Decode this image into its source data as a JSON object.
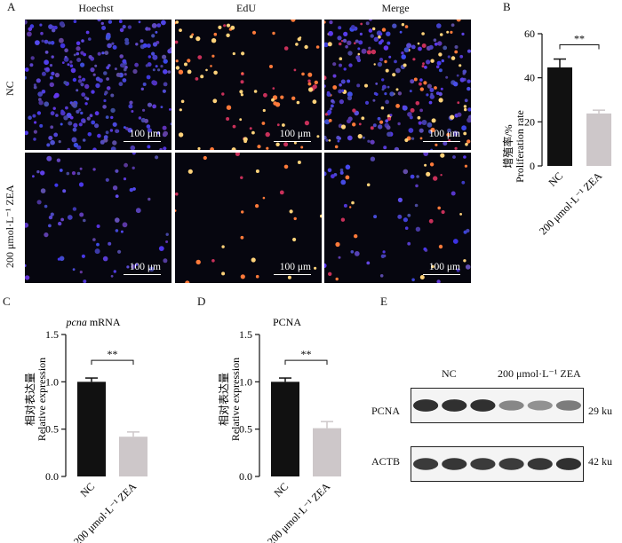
{
  "panel_letters": {
    "a": "A",
    "b": "B",
    "c": "C",
    "d": "D",
    "e": "E"
  },
  "panel_a": {
    "columns": [
      "Hoechst",
      "EdU",
      "Merge"
    ],
    "rows": [
      "NC",
      "200 μmol·L⁻¹ ZEA"
    ],
    "scale_bar": "100 μm"
  },
  "panel_b_extra": {
    "ylabel_cn": "增殖率/%",
    "ylabel_en": "Proliferation rate"
  },
  "panel_c_extra": {
    "title_italic": "pcna",
    "title_rest": " mRNA",
    "ylabel_cn": "相对表达量",
    "ylabel_en": "Relative expression"
  },
  "panel_d_extra": {
    "ylabel_cn": "相对表达量",
    "ylabel_en": "Relative expression"
  },
  "panel_e": {
    "groups": [
      "NC",
      "200 μmol·L⁻¹ ZEA"
    ],
    "proteins": [
      "PCNA",
      "ACTB"
    ],
    "sizes": [
      "29 ku",
      "42 ku"
    ],
    "pcna_intensity": [
      0.95,
      0.95,
      0.95,
      0.55,
      0.5,
      0.6
    ],
    "actb_intensity": [
      0.9,
      0.92,
      0.9,
      0.9,
      0.92,
      0.95
    ]
  },
  "chart_data": [
    {
      "type": "bar",
      "categories": [
        "NC",
        "200 μmol·L⁻¹ ZEA"
      ],
      "values": [
        44.7,
        23.8
      ],
      "errors": [
        3.8,
        1.5
      ],
      "ylim": [
        0,
        60
      ],
      "yticks": [
        0,
        20,
        40,
        60
      ],
      "significance": "**",
      "colors": [
        "#111111",
        "#cdc7c9"
      ]
    },
    {
      "type": "bar",
      "title": "pcna mRNA",
      "categories": [
        "NC",
        "200 μmol·L⁻¹ ZEA"
      ],
      "values": [
        1.0,
        0.42
      ],
      "errors": [
        0.04,
        0.05
      ],
      "ylim": [
        0,
        1.5
      ],
      "yticks": [
        0.0,
        0.5,
        1.0,
        1.5
      ],
      "significance": "**",
      "colors": [
        "#111111",
        "#cdc7c9"
      ]
    },
    {
      "type": "bar",
      "title": "PCNA",
      "categories": [
        "NC",
        "200 μmol·L⁻¹ ZEA"
      ],
      "values": [
        1.0,
        0.51
      ],
      "errors": [
        0.04,
        0.07
      ],
      "ylim": [
        0,
        1.5
      ],
      "yticks": [
        0.0,
        0.5,
        1.0,
        1.5
      ],
      "significance": "**",
      "colors": [
        "#111111",
        "#cdc7c9"
      ]
    }
  ]
}
